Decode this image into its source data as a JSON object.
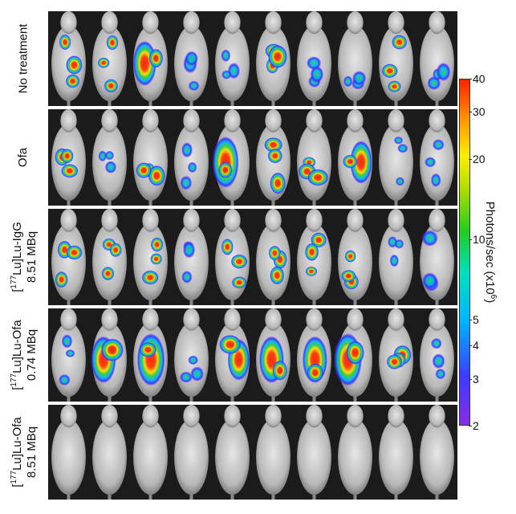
{
  "rows": [
    {
      "label_pre": "",
      "label_sup": "",
      "label_main": "No treatment",
      "label_line2": ""
    },
    {
      "label_pre": "",
      "label_sup": "",
      "label_main": "Ofa",
      "label_line2": ""
    },
    {
      "label_pre": "[",
      "label_sup": "177",
      "label_main": "Lu]Lu-IgG",
      "label_line2": "8.51 MBq"
    },
    {
      "label_pre": "[",
      "label_sup": "177",
      "label_main": "Lu]Lu-Ofa",
      "label_line2": "0.74 MBq"
    },
    {
      "label_pre": "[",
      "label_sup": "177",
      "label_main": "Lu]Lu-Ofa",
      "label_line2": "8.51 MBq"
    }
  ],
  "colorbar": {
    "title_main": "Photons/sec  (x10",
    "title_sup": "6",
    "title_end": ")",
    "ticks": [
      "40",
      "30",
      "20",
      "10",
      "5",
      "4",
      "3",
      "2"
    ],
    "colors": {
      "low": "#8a2be2",
      "mid": "#22cc22",
      "high": "#ff2200"
    }
  },
  "signal_levels": [
    [
      0.5,
      0.55,
      0.8,
      0.3,
      0.35,
      0.6,
      0.4,
      0.2,
      0.45,
      0.35
    ],
    [
      0.45,
      0.1,
      0.5,
      0.3,
      0.9,
      0.55,
      0.7,
      0.75,
      0.1,
      0.05
    ],
    [
      0.5,
      0.45,
      0.5,
      0.3,
      0.6,
      0.55,
      0.5,
      0.5,
      0.2,
      0.35
    ],
    [
      0.25,
      0.85,
      0.95,
      0.15,
      0.75,
      0.85,
      0.85,
      0.95,
      0.5,
      0.1
    ],
    [
      0,
      0,
      0,
      0,
      0,
      0,
      0,
      0,
      0,
      0
    ]
  ]
}
